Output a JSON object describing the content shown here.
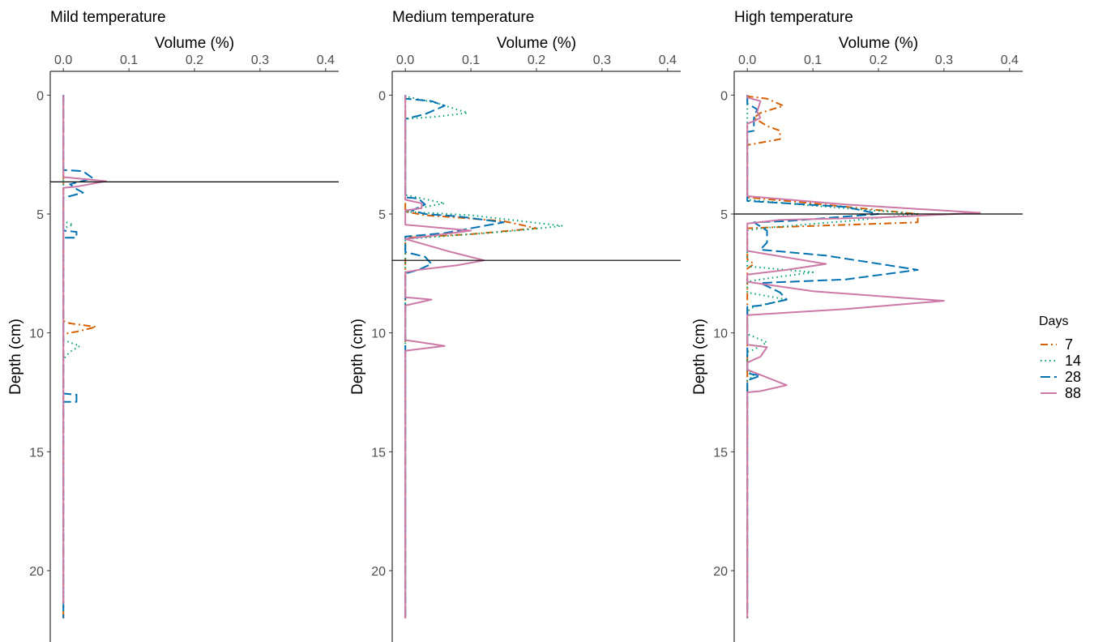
{
  "chart_data": {
    "type": "line",
    "shared": {
      "xlabel": "Volume (%)",
      "ylabel": "Depth (cm)",
      "xlim": [
        -0.02,
        0.42
      ],
      "ylim": [
        -1,
        23
      ],
      "x_ticks": [
        0.0,
        0.1,
        0.2,
        0.3,
        0.4
      ],
      "x_tick_labels": [
        "0.0",
        "0.1",
        "0.2",
        "0.3",
        "0.4"
      ],
      "y_ticks": [
        0,
        5,
        10,
        15,
        20
      ],
      "y_tick_labels": [
        "0",
        "5",
        "10",
        "15",
        "20"
      ],
      "y_reversed": true,
      "x_axis_position": "top",
      "grid": false
    },
    "legend": {
      "title": "Days",
      "position": "right",
      "entries": [
        {
          "label": "7",
          "color": "#D55E00",
          "dash": "dashdot"
        },
        {
          "label": "14",
          "color": "#009E73",
          "dash": "dotted"
        },
        {
          "label": "28",
          "color": "#0072B2",
          "dash": "longdash"
        },
        {
          "label": "88",
          "color": "#CC79A7",
          "dash": "solid"
        }
      ]
    },
    "panels": [
      {
        "title": "Mild temperature",
        "hline": 3.65,
        "series": [
          {
            "name": "7",
            "points": [
              [
                0,
                0
              ],
              [
                0,
                9.5
              ],
              [
                0.01,
                9.6
              ],
              [
                0.05,
                9.75
              ],
              [
                0.02,
                9.95
              ],
              [
                0,
                10.05
              ],
              [
                0,
                22
              ]
            ]
          },
          {
            "name": "14",
            "points": [
              [
                0,
                0
              ],
              [
                0,
                5.3
              ],
              [
                0.015,
                5.45
              ],
              [
                0,
                5.6
              ],
              [
                0,
                10.3
              ],
              [
                0.025,
                10.55
              ],
              [
                0.01,
                10.8
              ],
              [
                0,
                11.1
              ],
              [
                0,
                22
              ]
            ]
          },
          {
            "name": "28",
            "points": [
              [
                0,
                0
              ],
              [
                0,
                3.15
              ],
              [
                0.03,
                3.2
              ],
              [
                0.045,
                3.5
              ],
              [
                0.01,
                3.75
              ],
              [
                0.02,
                3.95
              ],
              [
                0.03,
                4.1
              ],
              [
                0.01,
                4.25
              ],
              [
                0,
                4.3
              ],
              [
                0,
                5.7
              ],
              [
                0.02,
                5.75
              ],
              [
                0.02,
                6.0
              ],
              [
                0,
                6.0
              ],
              [
                0,
                12.55
              ],
              [
                0.02,
                12.6
              ],
              [
                0.02,
                12.9
              ],
              [
                0,
                12.9
              ],
              [
                0,
                22
              ]
            ]
          },
          {
            "name": "88",
            "points": [
              [
                0,
                0
              ],
              [
                0,
                3.45
              ],
              [
                0.02,
                3.5
              ],
              [
                0.065,
                3.62
              ],
              [
                0.02,
                3.85
              ],
              [
                0,
                3.9
              ],
              [
                0,
                21.4
              ]
            ]
          }
        ]
      },
      {
        "title": "Medium temperature",
        "hline": 6.95,
        "series": [
          {
            "name": "7",
            "points": [
              [
                0,
                0
              ],
              [
                0,
                4.9
              ],
              [
                0.03,
                5.05
              ],
              [
                0.08,
                5.15
              ],
              [
                0.15,
                5.3
              ],
              [
                0.2,
                5.6
              ],
              [
                0.1,
                5.85
              ],
              [
                0.03,
                5.95
              ],
              [
                0,
                6.0
              ],
              [
                0,
                22
              ]
            ]
          },
          {
            "name": "14",
            "points": [
              [
                0,
                0
              ],
              [
                0,
                0.05
              ],
              [
                0.05,
                0.35
              ],
              [
                0.095,
                0.75
              ],
              [
                0.05,
                0.9
              ],
              [
                0,
                1.0
              ],
              [
                0,
                4.2
              ],
              [
                0.06,
                4.55
              ],
              [
                0.04,
                4.65
              ],
              [
                0,
                4.9
              ],
              [
                0.1,
                5.05
              ],
              [
                0.24,
                5.5
              ],
              [
                0.15,
                5.75
              ],
              [
                0.05,
                5.95
              ],
              [
                0,
                6.05
              ],
              [
                0,
                22
              ]
            ]
          },
          {
            "name": "28",
            "points": [
              [
                0,
                0
              ],
              [
                0,
                0.15
              ],
              [
                0.04,
                0.25
              ],
              [
                0.06,
                0.45
              ],
              [
                0.03,
                0.8
              ],
              [
                0,
                1.0
              ],
              [
                0,
                4.3
              ],
              [
                0.02,
                4.35
              ],
              [
                0.03,
                4.6
              ],
              [
                0.01,
                4.85
              ],
              [
                0.03,
                5.0
              ],
              [
                0.08,
                5.1
              ],
              [
                0.15,
                5.35
              ],
              [
                0.06,
                5.8
              ],
              [
                0,
                5.95
              ],
              [
                0,
                6.6
              ],
              [
                0.03,
                6.8
              ],
              [
                0.04,
                7.1
              ],
              [
                0.02,
                7.35
              ],
              [
                0,
                7.5
              ],
              [
                0,
                22
              ]
            ]
          },
          {
            "name": "88",
            "points": [
              [
                0,
                0
              ],
              [
                0,
                4.4
              ],
              [
                0.025,
                4.55
              ],
              [
                0.025,
                4.75
              ],
              [
                0,
                4.85
              ],
              [
                0,
                5.45
              ],
              [
                0.1,
                5.7
              ],
              [
                0.03,
                5.95
              ],
              [
                0,
                6.05
              ],
              [
                0.07,
                6.6
              ],
              [
                0.12,
                6.95
              ],
              [
                0.08,
                7.15
              ],
              [
                0.02,
                7.35
              ],
              [
                0,
                7.45
              ],
              [
                0,
                8.5
              ],
              [
                0.04,
                8.6
              ],
              [
                0,
                8.85
              ],
              [
                0,
                10.3
              ],
              [
                0.06,
                10.55
              ],
              [
                0,
                10.75
              ],
              [
                0,
                22
              ]
            ]
          }
        ]
      },
      {
        "title": "High temperature",
        "hline": 5.0,
        "series": [
          {
            "name": "7",
            "points": [
              [
                0,
                0
              ],
              [
                0,
                0.05
              ],
              [
                0.03,
                0.15
              ],
              [
                0.055,
                0.45
              ],
              [
                0.02,
                0.75
              ],
              [
                0.01,
                0.95
              ],
              [
                0.03,
                1.3
              ],
              [
                0.05,
                1.5
              ],
              [
                0.05,
                1.85
              ],
              [
                0.01,
                2.05
              ],
              [
                0,
                2.1
              ],
              [
                0,
                4.3
              ],
              [
                0.08,
                4.5
              ],
              [
                0.26,
                5.0
              ],
              [
                0.26,
                5.35
              ],
              [
                0.05,
                5.55
              ],
              [
                0,
                5.6
              ],
              [
                0,
                6.9
              ],
              [
                0.01,
                7.1
              ],
              [
                0,
                7.3
              ],
              [
                0,
                22
              ]
            ]
          },
          {
            "name": "14",
            "points": [
              [
                0,
                0
              ],
              [
                0,
                4.4
              ],
              [
                0.1,
                4.65
              ],
              [
                0.26,
                5.0
              ],
              [
                0.15,
                5.3
              ],
              [
                0.02,
                5.6
              ],
              [
                0,
                5.7
              ],
              [
                0,
                7.2
              ],
              [
                0.1,
                7.45
              ],
              [
                0.02,
                7.75
              ],
              [
                0,
                7.85
              ],
              [
                0,
                8.3
              ],
              [
                0.06,
                8.6
              ],
              [
                0.01,
                8.9
              ],
              [
                0,
                9.1
              ],
              [
                0,
                10.05
              ],
              [
                0.03,
                10.4
              ],
              [
                0.01,
                10.7
              ],
              [
                0,
                10.8
              ],
              [
                0,
                11.5
              ],
              [
                0.01,
                11.8
              ],
              [
                0,
                12.0
              ],
              [
                0,
                22
              ]
            ]
          },
          {
            "name": "28",
            "points": [
              [
                0,
                0
              ],
              [
                0,
                0.35
              ],
              [
                0.015,
                0.6
              ],
              [
                0.01,
                0.95
              ],
              [
                0.01,
                1.3
              ],
              [
                0.01,
                1.5
              ],
              [
                0,
                1.55
              ],
              [
                0,
                4.45
              ],
              [
                0.15,
                4.7
              ],
              [
                0.2,
                5.0
              ],
              [
                0.06,
                5.3
              ],
              [
                0.01,
                5.35
              ],
              [
                0.03,
                5.7
              ],
              [
                0.03,
                6.2
              ],
              [
                0.02,
                6.5
              ],
              [
                0.12,
                6.75
              ],
              [
                0.26,
                7.35
              ],
              [
                0.15,
                7.75
              ],
              [
                0.02,
                7.9
              ],
              [
                0.05,
                8.3
              ],
              [
                0.06,
                8.6
              ],
              [
                0.02,
                8.85
              ],
              [
                0,
                8.9
              ],
              [
                0,
                11.7
              ],
              [
                0.02,
                11.8
              ],
              [
                0,
                12.0
              ],
              [
                0,
                12.2
              ],
              [
                0,
                22
              ]
            ]
          },
          {
            "name": "88",
            "points": [
              [
                0,
                0
              ],
              [
                0,
                0.1
              ],
              [
                0.02,
                0.25
              ],
              [
                0.015,
                0.7
              ],
              [
                0.02,
                0.95
              ],
              [
                0.01,
                1.1
              ],
              [
                0,
                1.2
              ],
              [
                0,
                4.25
              ],
              [
                0.15,
                4.6
              ],
              [
                0.355,
                4.95
              ],
              [
                0.2,
                5.15
              ],
              [
                0.05,
                5.25
              ],
              [
                0,
                5.4
              ],
              [
                0,
                6.55
              ],
              [
                0.12,
                7.1
              ],
              [
                0.06,
                7.35
              ],
              [
                0,
                7.55
              ],
              [
                0,
                7.85
              ],
              [
                0.1,
                8.25
              ],
              [
                0.3,
                8.65
              ],
              [
                0.15,
                9.0
              ],
              [
                0,
                9.25
              ],
              [
                0,
                10.5
              ],
              [
                0.03,
                10.6
              ],
              [
                0.02,
                11.0
              ],
              [
                0,
                11.25
              ],
              [
                0,
                11.55
              ],
              [
                0.06,
                12.2
              ],
              [
                0.02,
                12.45
              ],
              [
                0,
                12.5
              ],
              [
                0,
                22
              ]
            ]
          }
        ]
      }
    ]
  }
}
